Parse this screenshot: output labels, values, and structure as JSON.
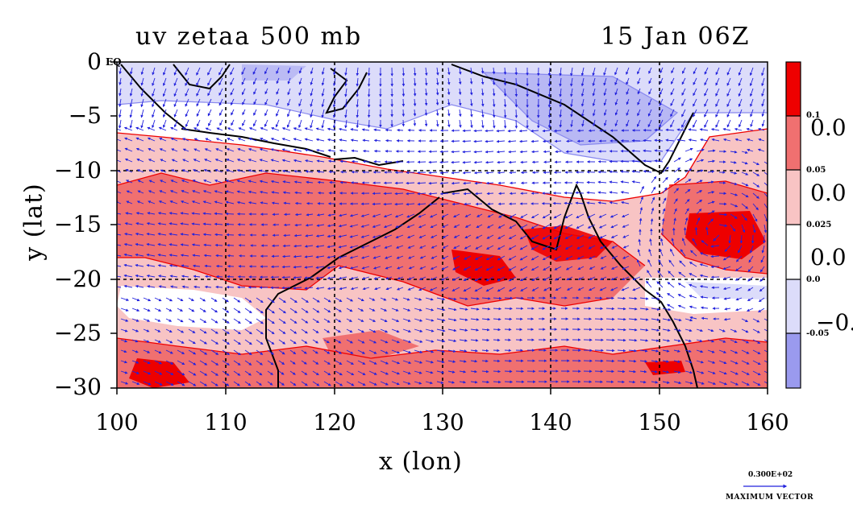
{
  "title": {
    "left": "uv zetaa 500 mb",
    "right": "15 Jan 06Z"
  },
  "axes": {
    "xlabel": "x (lon)",
    "ylabel": "y (lat)",
    "xticks": [
      "100",
      "110",
      "120",
      "130",
      "140",
      "150",
      "160"
    ],
    "yticks": [
      "0",
      "−5",
      "−10",
      "−15",
      "−20",
      "−25",
      "−30"
    ],
    "xlim": [
      100,
      160
    ],
    "ylim": [
      -30,
      0
    ],
    "equator_label": "EQ",
    "grid": true
  },
  "colorbar": {
    "small_labels": [
      "0.1",
      "0.05",
      "0.025",
      "0.0",
      "-0.05"
    ],
    "big_labels": [
      "0.0",
      "0.0",
      "0.0",
      "−0."
    ],
    "colors": [
      "#ee0000",
      "#f07070",
      "#f8c4c4",
      "#ffffff",
      "#dcdcfa",
      "#9a9aee"
    ]
  },
  "vector_key": {
    "value": "0.300E+02",
    "label": "MAXIMUM VECTOR",
    "color": "#2222dd"
  },
  "colors": {
    "positive": "#ee0000",
    "negative": "#8888ee",
    "vectors": "#2222dd",
    "coast": "#000000"
  }
}
